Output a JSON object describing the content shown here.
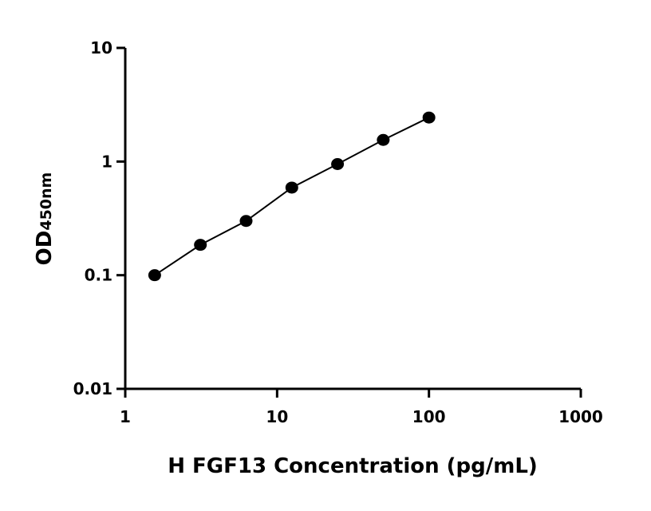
{
  "chart_data": {
    "type": "line",
    "xlabel": "H FGF13 Concentration (pg/mL)",
    "ylabel": "OD",
    "ylabel_subscript": "450nm",
    "xscale": "log",
    "yscale": "log",
    "xlim": [
      1,
      1000
    ],
    "ylim": [
      0.01,
      10
    ],
    "xticks": [
      "1",
      "10",
      "100",
      "1000"
    ],
    "yticks": [
      "0.01",
      "0.1",
      "1",
      "10"
    ],
    "grid": false,
    "series": [
      {
        "x": [
          1.5625,
          3.125,
          6.25,
          12.5,
          25,
          50,
          100
        ],
        "y": [
          0.1,
          0.185,
          0.3,
          0.59,
          0.95,
          1.55,
          2.44
        ],
        "color": "#000000",
        "marker": "circle"
      }
    ]
  }
}
